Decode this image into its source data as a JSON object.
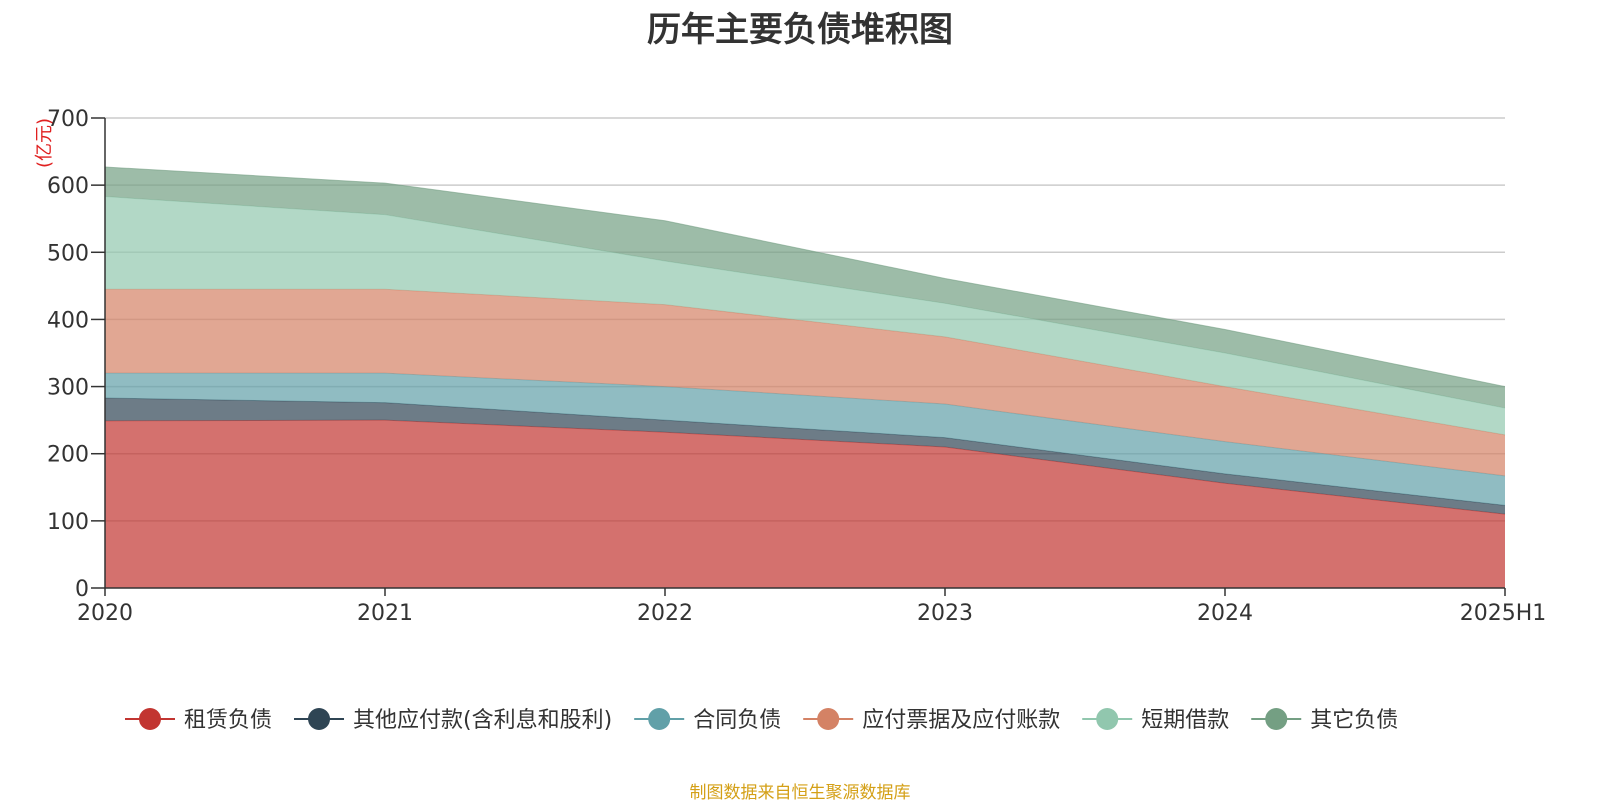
{
  "chart_data": {
    "type": "area",
    "stacked": true,
    "title": "历年主要负债堆积图",
    "ylabel": "(亿元)",
    "xlabel": "",
    "ylim": [
      0,
      700
    ],
    "yticks": [
      0,
      100,
      200,
      300,
      400,
      500,
      600,
      700
    ],
    "categories": [
      "2020",
      "2021",
      "2022",
      "2023",
      "2024",
      "2025H1"
    ],
    "grid": true,
    "legend_position": "bottom",
    "series": [
      {
        "name": "租赁负债",
        "color": "#c23531",
        "values": [
          249,
          250,
          232,
          210,
          156,
          110
        ]
      },
      {
        "name": "其他应付款(含利息和股利)",
        "color": "#2f4554",
        "values": [
          34,
          26,
          18,
          14,
          14,
          13
        ]
      },
      {
        "name": "合同负债",
        "color": "#61a0a8",
        "values": [
          37,
          44,
          50,
          50,
          48,
          44
        ]
      },
      {
        "name": "应付票据及应付账款",
        "color": "#d48265",
        "values": [
          125,
          125,
          122,
          100,
          82,
          61
        ]
      },
      {
        "name": "短期借款",
        "color": "#91c7ae",
        "values": [
          138,
          111,
          65,
          50,
          50,
          40
        ]
      },
      {
        "name": "其它负债",
        "color": "#749f83",
        "values": [
          44,
          47,
          60,
          37,
          35,
          32
        ]
      }
    ]
  },
  "footer": {
    "source": "制图数据来自恒生聚源数据库"
  }
}
